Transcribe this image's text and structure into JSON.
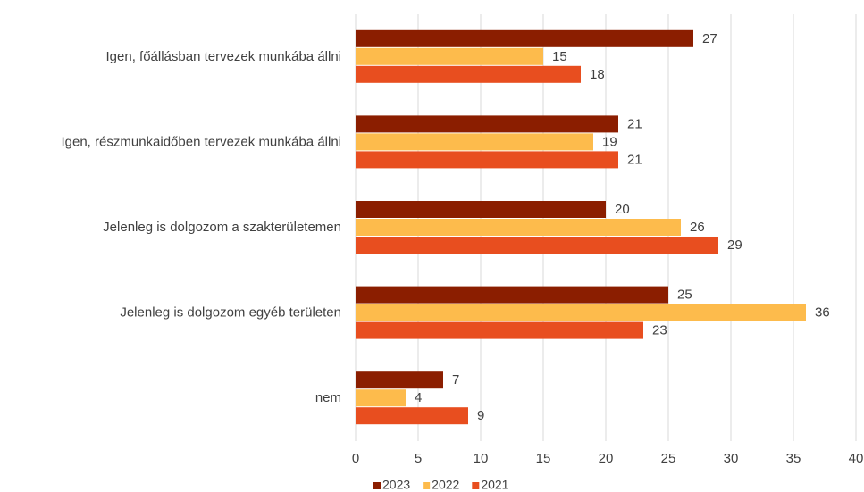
{
  "chart_data": {
    "type": "barh",
    "categories": [
      "Igen, főállásban tervezek munkába állni",
      "Igen, részmunkaidőben tervezek munkába állni",
      "Jelenleg is dolgozom a szakterületemen",
      "Jelenleg is dolgozom egyéb területen",
      "nem"
    ],
    "series": [
      {
        "name": "2023",
        "color": "#8b1e00",
        "values": [
          27,
          21,
          20,
          25,
          7
        ]
      },
      {
        "name": "2022",
        "color": "#fdbb4c",
        "values": [
          15,
          19,
          26,
          36,
          4
        ]
      },
      {
        "name": "2021",
        "color": "#e84e1f",
        "values": [
          18,
          21,
          29,
          23,
          9
        ]
      }
    ],
    "xlim": [
      0,
      40
    ],
    "xticks": [
      0,
      5,
      10,
      15,
      20,
      25,
      30,
      35,
      40
    ],
    "grid": true,
    "legend": "bottom"
  }
}
